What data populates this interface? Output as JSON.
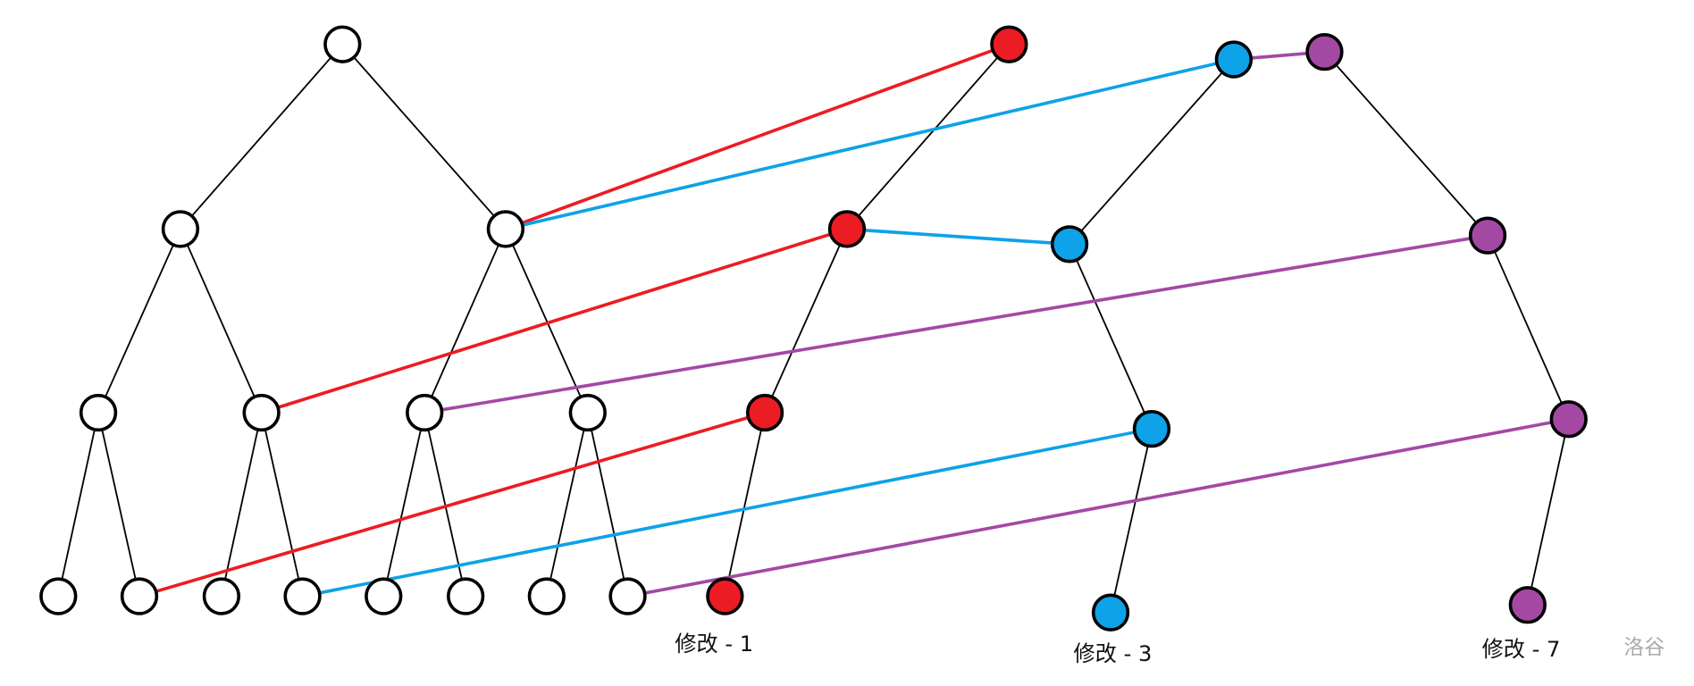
{
  "labels": [
    "修改 - 1",
    "修改 - 3",
    "修改 - 7"
  ],
  "watermark": "洛谷"
}
